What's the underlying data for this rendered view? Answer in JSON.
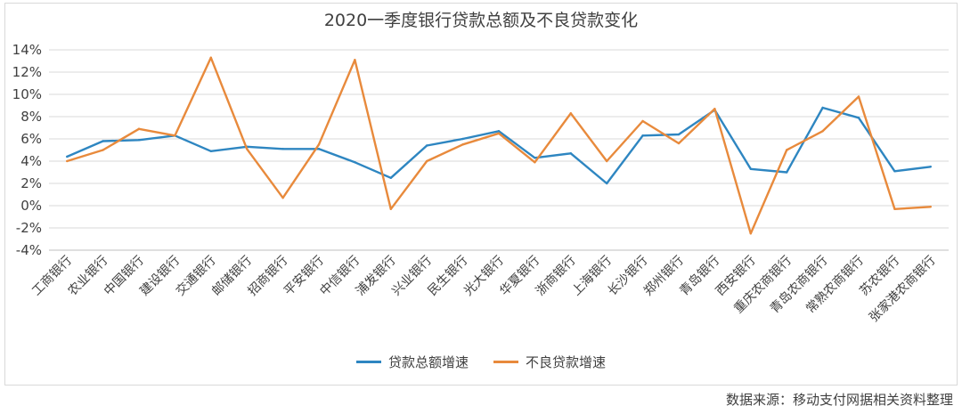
{
  "chart_data": {
    "type": "line",
    "title": "2020一季度银行贷款总额及不良贷款变化",
    "xlabel": "",
    "ylabel": "",
    "ylim": [
      -0.04,
      0.14
    ],
    "y_ticks": [
      "14%",
      "12%",
      "10%",
      "8%",
      "6%",
      "4%",
      "2%",
      "0%",
      "-2%",
      "-4%"
    ],
    "grid": true,
    "legend_position": "bottom",
    "categories": [
      "工商银行",
      "农业银行",
      "中国银行",
      "建设银行",
      "交通银行",
      "邮储银行",
      "招商银行",
      "平安银行",
      "中信银行",
      "浦发银行",
      "兴业银行",
      "民生银行",
      "光大银行",
      "华夏银行",
      "浙商银行",
      "上海银行",
      "长沙银行",
      "郑州银行",
      "青岛银行",
      "西安银行",
      "重庆农商银行",
      "青岛农商银行",
      "常熟农商银行",
      "苏农银行",
      "张家港农商银行"
    ],
    "series": [
      {
        "name": "贷款总额增速",
        "color": "#2e86c1",
        "values": [
          0.044,
          0.058,
          0.059,
          0.063,
          0.049,
          0.053,
          0.051,
          0.051,
          0.039,
          0.025,
          0.054,
          0.06,
          0.067,
          0.043,
          0.047,
          0.02,
          0.063,
          0.064,
          0.086,
          0.033,
          0.03,
          0.088,
          0.079,
          0.031,
          0.035
        ]
      },
      {
        "name": "不良贷款增速",
        "color": "#e88a3c",
        "values": [
          0.04,
          0.05,
          0.069,
          0.063,
          0.133,
          0.051,
          0.007,
          0.055,
          0.131,
          -0.003,
          0.04,
          0.055,
          0.065,
          0.039,
          0.083,
          0.04,
          0.076,
          0.056,
          0.087,
          -0.025,
          0.05,
          0.067,
          0.098,
          -0.003,
          -0.001
        ]
      }
    ],
    "source": "数据来源：移动支付网据相关资料整理"
  }
}
